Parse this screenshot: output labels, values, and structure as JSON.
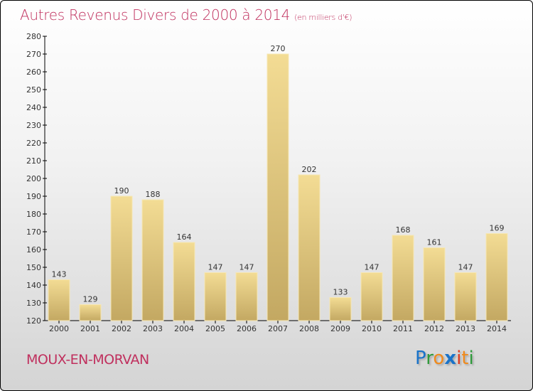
{
  "chart_data": {
    "type": "bar",
    "title": "Autres Revenus Divers de 2000 à 2014",
    "unit": "(en milliers d'€)",
    "categories": [
      "2000",
      "2001",
      "2002",
      "2003",
      "2004",
      "2005",
      "2006",
      "2007",
      "2008",
      "2009",
      "2010",
      "2011",
      "2012",
      "2013",
      "2014"
    ],
    "values": [
      143,
      129,
      190,
      188,
      164,
      147,
      147,
      270,
      202,
      133,
      147,
      168,
      161,
      147,
      169
    ],
    "ylim": [
      120,
      280
    ],
    "yticks": [
      120,
      130,
      140,
      150,
      160,
      170,
      180,
      190,
      200,
      210,
      220,
      230,
      240,
      250,
      260,
      270,
      280
    ],
    "xlabel": "",
    "ylabel": "",
    "bar_color": "#e8cf87",
    "title_color": "#c0305e"
  },
  "footer": {
    "city": "MOUX-EN-MORVAN"
  },
  "logo": {
    "text": "Proxiti"
  }
}
